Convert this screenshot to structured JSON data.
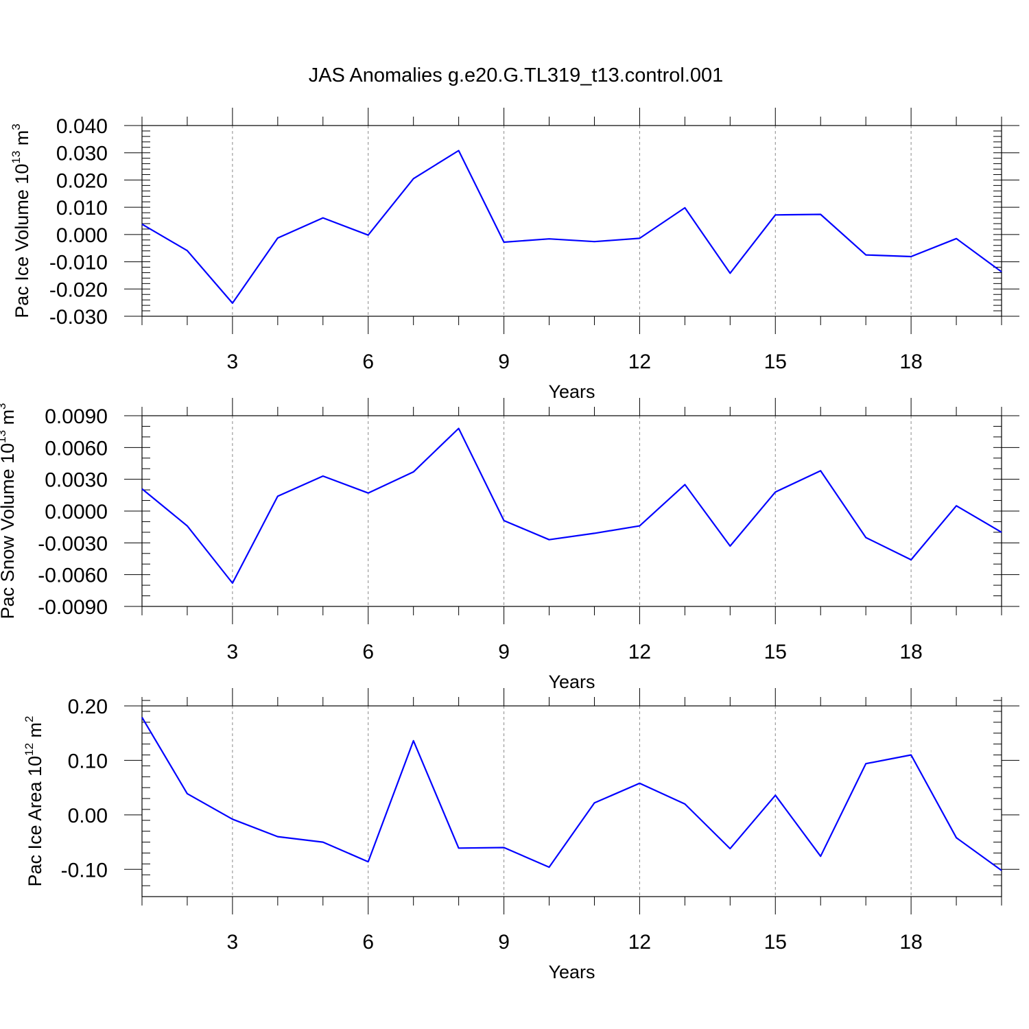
{
  "figure": {
    "title": "JAS Anomalies g.e20.G.TL319_t13.control.001"
  },
  "colors": {
    "series": "#0000ff",
    "axes": "#000000",
    "grid": "#888888"
  },
  "chart_data": [
    {
      "type": "line",
      "ylabel": {
        "text": "Pac Ice Volume 10",
        "sup": "13",
        "unit": " m",
        "unit_sup": "3"
      },
      "xlabel": "Years",
      "xlim": [
        1,
        20
      ],
      "ylim": [
        -0.03,
        0.04
      ],
      "yticks": [
        -0.03,
        -0.02,
        -0.01,
        0.0,
        0.01,
        0.02,
        0.03,
        0.04
      ],
      "ytick_labels": [
        "-0.030",
        "-0.020",
        "-0.010",
        "0.000",
        "0.010",
        "0.020",
        "0.030",
        "0.040"
      ],
      "yminor_step": 0.002,
      "xticks": [
        3,
        6,
        9,
        12,
        15,
        18
      ],
      "xtick_labels": [
        "3",
        "6",
        "9",
        "12",
        "15",
        "18"
      ],
      "grid": "x-dashed",
      "x": [
        1,
        2,
        3,
        4,
        5,
        6,
        7,
        8,
        9,
        10,
        11,
        12,
        13,
        14,
        15,
        16,
        17,
        18,
        19,
        20
      ],
      "series": [
        {
          "values": [
            0.0038,
            -0.0059,
            -0.0252,
            -0.0013,
            0.0061,
            -0.0002,
            0.0205,
            0.0308,
            -0.0028,
            -0.0016,
            -0.0026,
            -0.0014,
            0.0098,
            -0.0142,
            0.0072,
            0.0074,
            -0.0075,
            -0.0081,
            -0.0015,
            -0.0137
          ]
        }
      ]
    },
    {
      "type": "line",
      "ylabel": {
        "text": "Pac Snow Volume 10",
        "sup": "13",
        "unit": " m",
        "unit_sup": "3"
      },
      "xlabel": "Years",
      "xlim": [
        1,
        20
      ],
      "ylim": [
        -0.009,
        0.009
      ],
      "yticks": [
        -0.009,
        -0.006,
        -0.003,
        0.0,
        0.003,
        0.006,
        0.009
      ],
      "ytick_labels": [
        "-0.0090",
        "-0.0060",
        "-0.0030",
        "0.0000",
        "0.0030",
        "0.0060",
        "0.0090"
      ],
      "yminor_step": 0.001,
      "xticks": [
        3,
        6,
        9,
        12,
        15,
        18
      ],
      "xtick_labels": [
        "3",
        "6",
        "9",
        "12",
        "15",
        "18"
      ],
      "grid": "x-dashed",
      "x": [
        1,
        2,
        3,
        4,
        5,
        6,
        7,
        8,
        9,
        10,
        11,
        12,
        13,
        14,
        15,
        16,
        17,
        18,
        19,
        20
      ],
      "series": [
        {
          "values": [
            0.0021,
            -0.0014,
            -0.0068,
            0.0014,
            0.0033,
            0.0017,
            0.0037,
            0.0078,
            -0.0009,
            -0.0027,
            -0.0021,
            -0.0014,
            0.0025,
            -0.0033,
            0.0018,
            0.0038,
            -0.0025,
            -0.0046,
            0.0005,
            -0.002
          ]
        }
      ]
    },
    {
      "type": "line",
      "ylabel": {
        "text": "Pac Ice Area 10",
        "sup": "12",
        "unit": " m",
        "unit_sup": "2"
      },
      "xlabel": "Years",
      "xlim": [
        1,
        20
      ],
      "ylim": [
        -0.15,
        0.2
      ],
      "yticks": [
        -0.1,
        0.0,
        0.1,
        0.2
      ],
      "ytick_labels": [
        "-0.10",
        "0.00",
        "0.10",
        "0.20"
      ],
      "yminor_step": 0.02,
      "xticks": [
        3,
        6,
        9,
        12,
        15,
        18
      ],
      "xtick_labels": [
        "3",
        "6",
        "9",
        "12",
        "15",
        "18"
      ],
      "grid": "x-dashed",
      "x": [
        1,
        2,
        3,
        4,
        5,
        6,
        7,
        8,
        9,
        10,
        11,
        12,
        13,
        14,
        15,
        16,
        17,
        18,
        19,
        20
      ],
      "series": [
        {
          "values": [
            0.179,
            0.039,
            -0.008,
            -0.04,
            -0.05,
            -0.086,
            0.136,
            -0.061,
            -0.06,
            -0.096,
            0.022,
            0.058,
            0.02,
            -0.062,
            0.036,
            -0.076,
            0.094,
            0.11,
            -0.042,
            -0.102
          ]
        }
      ]
    }
  ]
}
